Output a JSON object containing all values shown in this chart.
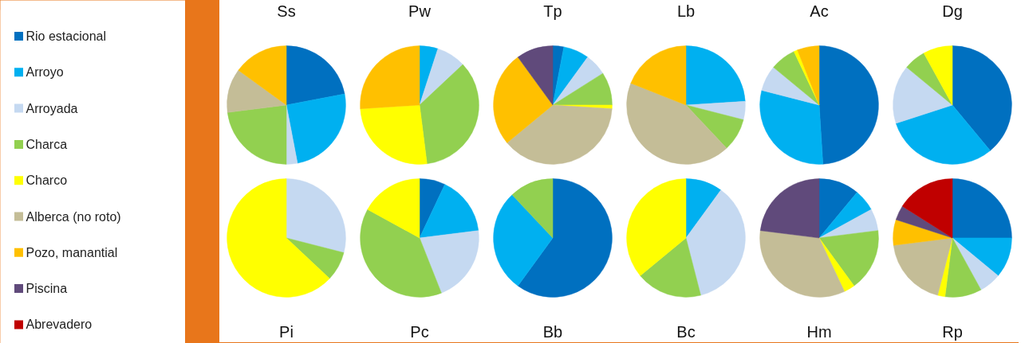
{
  "chart_data": [
    {
      "type": "pie",
      "title": "Ss",
      "legend": "left",
      "categories": [
        "Rio estacional",
        "Arroyo",
        "Arroyada",
        "Charca",
        "Charco",
        "Alberca (no roto)",
        "Pozo, manantial",
        "Piscina",
        "Abrevadero"
      ],
      "values": [
        22,
        25,
        3,
        23,
        0,
        12,
        15,
        0,
        0
      ],
      "colors": [
        "#0070c0",
        "#00b0f0",
        "#c5d9f1",
        "#92d050",
        "#ffff00",
        "#c4bd97",
        "#ffc000",
        "#604a7b",
        "#c00000"
      ]
    },
    {
      "type": "pie",
      "title": "Pw",
      "categories": [
        null,
        null,
        null,
        null,
        null,
        null,
        null,
        null,
        null
      ],
      "values": [
        0,
        5,
        8,
        35,
        26,
        0,
        26,
        0,
        0
      ],
      "colors": [
        "#0070c0",
        "#00b0f0",
        "#c5d9f1",
        "#92d050",
        "#ffff00",
        "#c4bd97",
        "#ffc000",
        "#604a7b",
        "#c00000"
      ]
    },
    {
      "type": "pie",
      "title": "Tp",
      "categories": [
        null,
        null,
        null,
        null,
        null,
        null,
        null,
        null,
        null
      ],
      "values": [
        3,
        7,
        6,
        9,
        1,
        38,
        26,
        10,
        0
      ],
      "colors": [
        "#0070c0",
        "#00b0f0",
        "#c5d9f1",
        "#92d050",
        "#ffff00",
        "#c4bd97",
        "#ffc000",
        "#604a7b",
        "#c00000"
      ]
    },
    {
      "type": "pie",
      "title": "Lb",
      "categories": [
        null,
        null,
        null,
        null,
        null,
        null,
        null,
        null,
        null
      ],
      "values": [
        0,
        24,
        5,
        9,
        0,
        43,
        19,
        0,
        0
      ],
      "colors": [
        "#0070c0",
        "#00b0f0",
        "#c5d9f1",
        "#92d050",
        "#ffff00",
        "#c4bd97",
        "#ffc000",
        "#604a7b",
        "#c00000"
      ]
    },
    {
      "type": "pie",
      "title": "Ac",
      "categories": [
        null,
        null,
        null,
        null,
        null,
        null,
        null,
        null,
        null
      ],
      "values": [
        49,
        30,
        7,
        7,
        1,
        0,
        6,
        0,
        0
      ],
      "colors": [
        "#0070c0",
        "#00b0f0",
        "#c5d9f1",
        "#92d050",
        "#ffff00",
        "#c4bd97",
        "#ffc000",
        "#604a7b",
        "#c00000"
      ]
    },
    {
      "type": "pie",
      "title": "Dg",
      "categories": [
        null,
        null,
        null,
        null,
        null,
        null,
        null,
        null,
        null
      ],
      "values": [
        39,
        31,
        16,
        6,
        8,
        0,
        0,
        0,
        0
      ],
      "colors": [
        "#0070c0",
        "#00b0f0",
        "#c5d9f1",
        "#92d050",
        "#ffff00",
        "#c4bd97",
        "#ffc000",
        "#604a7b",
        "#c00000"
      ]
    },
    {
      "type": "pie",
      "title": "Pi",
      "categories": [
        null,
        null,
        null,
        null,
        null,
        null,
        null,
        null,
        null
      ],
      "values": [
        0,
        0,
        29,
        8,
        63,
        0,
        0,
        0,
        0
      ],
      "colors": [
        "#0070c0",
        "#00b0f0",
        "#c5d9f1",
        "#92d050",
        "#ffff00",
        "#c4bd97",
        "#ffc000",
        "#604a7b",
        "#c00000"
      ]
    },
    {
      "type": "pie",
      "title": "Pc",
      "categories": [
        null,
        null,
        null,
        null,
        null,
        null,
        null,
        null,
        null
      ],
      "values": [
        7,
        16,
        21,
        39,
        17,
        0,
        0,
        0,
        0
      ],
      "colors": [
        "#0070c0",
        "#00b0f0",
        "#c5d9f1",
        "#92d050",
        "#ffff00",
        "#c4bd97",
        "#ffc000",
        "#604a7b",
        "#c00000"
      ]
    },
    {
      "type": "pie",
      "title": "Bb",
      "categories": [
        null,
        null,
        null,
        null,
        null,
        null,
        null,
        null,
        null
      ],
      "values": [
        60,
        28,
        0,
        12,
        0,
        0,
        0,
        0,
        0
      ],
      "colors": [
        "#0070c0",
        "#00b0f0",
        "#c5d9f1",
        "#92d050",
        "#ffff00",
        "#c4bd97",
        "#ffc000",
        "#604a7b",
        "#c00000"
      ]
    },
    {
      "type": "pie",
      "title": "Bc",
      "categories": [
        null,
        null,
        null,
        null,
        null,
        null,
        null,
        null,
        null
      ],
      "values": [
        0,
        10,
        36,
        18,
        36,
        0,
        0,
        0,
        0
      ],
      "colors": [
        "#0070c0",
        "#00b0f0",
        "#c5d9f1",
        "#92d050",
        "#ffff00",
        "#c4bd97",
        "#ffc000",
        "#604a7b",
        "#c00000"
      ]
    },
    {
      "type": "pie",
      "title": "Hm",
      "categories": [
        null,
        null,
        null,
        null,
        null,
        null,
        null,
        null,
        null
      ],
      "values": [
        11,
        6,
        6,
        17,
        3,
        34,
        0,
        23,
        0
      ],
      "colors": [
        "#0070c0",
        "#00b0f0",
        "#c5d9f1",
        "#92d050",
        "#ffff00",
        "#c4bd97",
        "#ffc000",
        "#604a7b",
        "#c00000"
      ]
    },
    {
      "type": "pie",
      "title": "Rp",
      "categories": [
        null,
        null,
        null,
        null,
        null,
        null,
        null,
        null,
        null
      ],
      "values": [
        25,
        11,
        6,
        10,
        2,
        19,
        7,
        4,
        16
      ],
      "colors": [
        "#0070c0",
        "#00b0f0",
        "#c5d9f1",
        "#92d050",
        "#ffff00",
        "#c4bd97",
        "#ffc000",
        "#604a7b",
        "#c00000"
      ]
    }
  ]
}
